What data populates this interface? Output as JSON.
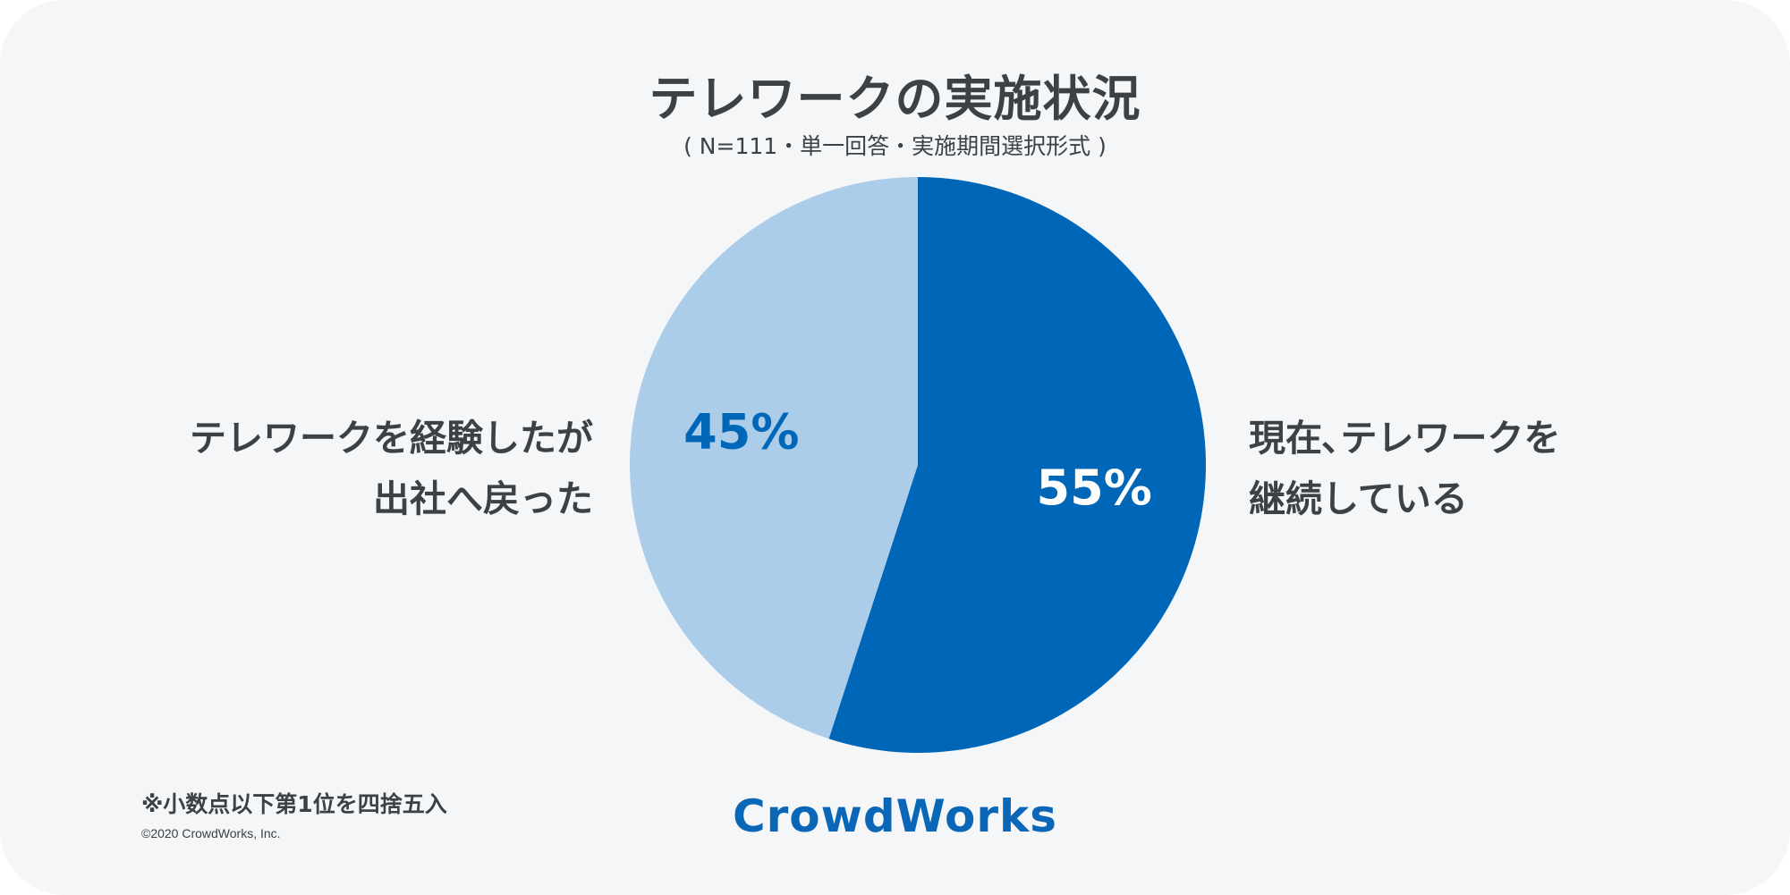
{
  "header": {
    "title": "テレワークの実施状況",
    "subtitle": "( N=111・単一回答・実施期間選択形式 )"
  },
  "labels": {
    "left_line1": "テレワークを経験したが",
    "left_line2": "出社へ戻った",
    "right_line1": "現在､テレワークを",
    "right_line2": "継続している"
  },
  "footer": {
    "note": "※小数点以下第1位を四捨五入",
    "copyright": "©2020 CrowdWorks, Inc.",
    "logo_text": "CrowdWorks"
  },
  "chart_data": {
    "type": "pie",
    "title": "テレワークの実施状況",
    "slices": [
      {
        "label": "現在､テレワークを継続している",
        "value": 55,
        "display": "55%",
        "color": "#0067b8",
        "text_color": "#ffffff"
      },
      {
        "label": "テレワークを経験したが出社へ戻った",
        "value": 45,
        "display": "45%",
        "color": "#abcdea",
        "text_color": "#0067b8"
      }
    ],
    "start_angle": "12 o'clock",
    "direction": "clockwise"
  },
  "colors": {
    "background": "#f5f6f8",
    "text": "#3b4145",
    "brand": "#0a67b8"
  }
}
